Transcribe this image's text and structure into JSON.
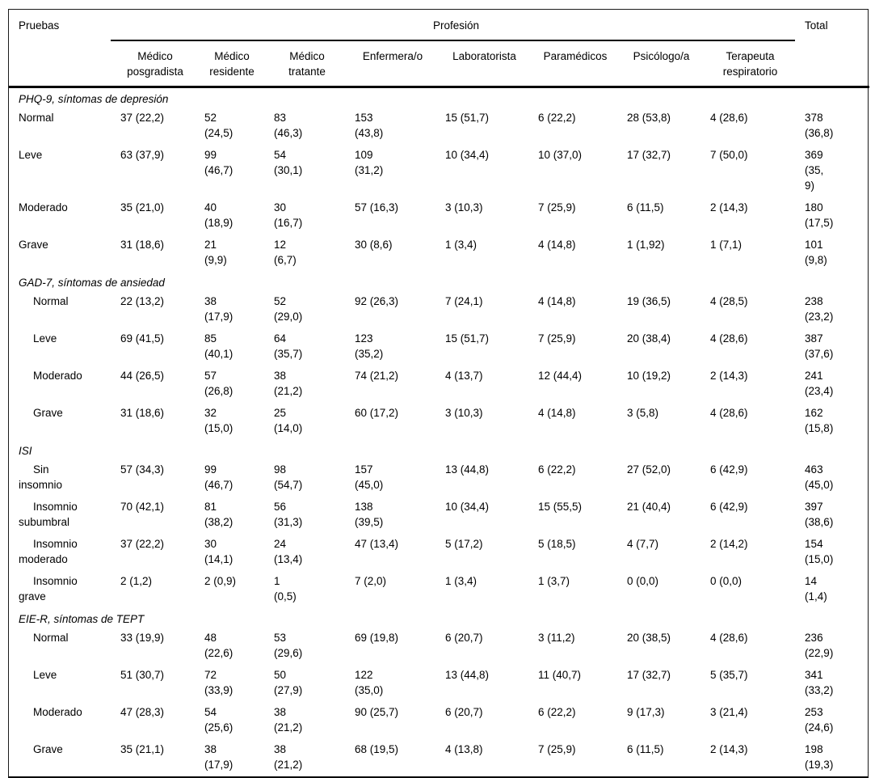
{
  "table": {
    "corner_label": "Pruebas",
    "group_header": "Profesión",
    "total_label": "Total",
    "columns": [
      "Médico posgradista",
      "Médico residente",
      "Médico tratante",
      "Enfermera/o",
      "Laboratorista",
      "Paramédicos",
      "Psicólogo/a",
      "Terapeuta respiratorio"
    ],
    "sections": [
      {
        "title": "PHQ-9, síntomas de depresión",
        "indent_rows": false,
        "rows": [
          {
            "label": "Normal",
            "cells": [
              "37 (22,2)",
              "52\n(24,5)",
              "83\n(46,3)",
              "153\n(43,8)",
              "15 (51,7)",
              "6 (22,2)",
              "28 (53,8)",
              "4 (28,6)",
              "378\n(36,8)"
            ]
          },
          {
            "label": "Leve",
            "cells": [
              "63 (37,9)",
              "99\n(46,7)",
              "54\n(30,1)",
              "109\n(31,2)",
              "10 (34,4)",
              "10 (37,0)",
              "17 (32,7)",
              "7 (50,0)",
              "369\n(35,\n9)"
            ]
          },
          {
            "label": "Moderado",
            "cells": [
              "35 (21,0)",
              "40\n(18,9)",
              "30\n(16,7)",
              "57 (16,3)",
              "3 (10,3)",
              "7 (25,9)",
              "6 (11,5)",
              "2 (14,3)",
              "180\n(17,5)"
            ]
          },
          {
            "label": "Grave",
            "cells": [
              "31 (18,6)",
              "21\n(9,9)",
              "12\n(6,7)",
              "30 (8,6)",
              "1 (3,4)",
              "4 (14,8)",
              "1 (1,92)",
              "1 (7,1)",
              "101\n(9,8)"
            ]
          }
        ]
      },
      {
        "title": "GAD-7, síntomas de ansiedad",
        "indent_rows": true,
        "rows": [
          {
            "label": "Normal",
            "cells": [
              "22 (13,2)",
              "38\n(17,9)",
              "52\n(29,0)",
              "92 (26,3)",
              "7 (24,1)",
              "4 (14,8)",
              "19 (36,5)",
              "4 (28,5)",
              "238\n(23,2)"
            ]
          },
          {
            "label": "Leve",
            "cells": [
              "69 (41,5)",
              "85\n(40,1)",
              "64\n(35,7)",
              "123\n(35,2)",
              "15 (51,7)",
              "7 (25,9)",
              "20 (38,4)",
              "4 (28,6)",
              "387\n(37,6)"
            ]
          },
          {
            "label": "Moderado",
            "cells": [
              "44 (26,5)",
              "57\n(26,8)",
              "38\n(21,2)",
              "74 (21,2)",
              "4 (13,7)",
              "12 (44,4)",
              "10 (19,2)",
              "2 (14,3)",
              "241\n(23,4)"
            ]
          },
          {
            "label": "Grave",
            "cells": [
              "31 (18,6)",
              "32\n(15,0)",
              "25\n(14,0)",
              "60 (17,2)",
              "3 (10,3)",
              "4 (14,8)",
              "3 (5,8)",
              "4 (28,6)",
              "162\n(15,8)"
            ]
          }
        ]
      },
      {
        "title": "ISI",
        "indent_rows": true,
        "rows": [
          {
            "label": "Sin\ninsomnio",
            "cells": [
              "57 (34,3)",
              "99\n(46,7)",
              "98\n(54,7)",
              "157\n(45,0)",
              "13 (44,8)",
              "6 (22,2)",
              "27 (52,0)",
              "6 (42,9)",
              "463\n(45,0)"
            ]
          },
          {
            "label": "Insomnio\nsubumbral",
            "cells": [
              "70 (42,1)",
              "81\n(38,2)",
              "56\n(31,3)",
              "138\n(39,5)",
              "10 (34,4)",
              "15 (55,5)",
              "21 (40,4)",
              "6 (42,9)",
              "397\n(38,6)"
            ]
          },
          {
            "label": "Insomnio\nmoderado",
            "cells": [
              "37 (22,2)",
              "30\n(14,1)",
              "24\n(13,4)",
              "47 (13,4)",
              "5 (17,2)",
              "5 (18,5)",
              "4 (7,7)",
              "2 (14,2)",
              "154\n(15,0)"
            ]
          },
          {
            "label": "Insomnio\ngrave",
            "cells": [
              "2 (1,2)",
              "2 (0,9)",
              "1\n(0,5)",
              "7 (2,0)",
              "1 (3,4)",
              "1 (3,7)",
              "0 (0,0)",
              "0 (0,0)",
              "14\n(1,4)"
            ]
          }
        ]
      },
      {
        "title": "EIE-R, síntomas de TEPT",
        "indent_rows": true,
        "rows": [
          {
            "label": "Normal",
            "cells": [
              "33 (19,9)",
              "48\n(22,6)",
              "53\n(29,6)",
              "69 (19,8)",
              "6 (20,7)",
              "3 (11,2)",
              "20 (38,5)",
              "4 (28,6)",
              "236\n(22,9)"
            ]
          },
          {
            "label": "Leve",
            "cells": [
              "51 (30,7)",
              "72\n(33,9)",
              "50\n(27,9)",
              "122\n(35,0)",
              "13 (44,8)",
              "11 (40,7)",
              "17 (32,7)",
              "5 (35,7)",
              "341\n(33,2)"
            ]
          },
          {
            "label": "Moderado",
            "cells": [
              "47 (28,3)",
              "54\n(25,6)",
              "38\n(21,2)",
              "90 (25,7)",
              "6 (20,7)",
              "6 (22,2)",
              "9 (17,3)",
              "3 (21,4)",
              "253\n(24,6)"
            ]
          },
          {
            "label": "Grave",
            "cells": [
              "35 (21,1)",
              "38\n(17,9)",
              "38\n(21,2)",
              "68 (19,5)",
              "4 (13,8)",
              "7 (25,9)",
              "6 (11,5)",
              "2 (14,3)",
              "198\n(19,3)"
            ]
          }
        ]
      }
    ]
  },
  "colors": {
    "text": "#000000",
    "rule": "#000000",
    "background": "#ffffff"
  }
}
